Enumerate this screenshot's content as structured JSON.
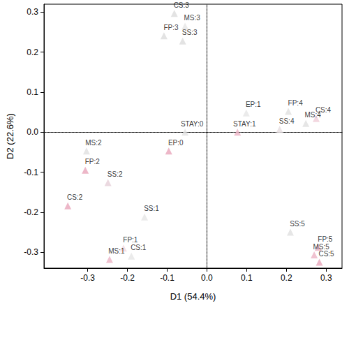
{
  "chart_data": {
    "type": "scatter",
    "x_label": "D1 (54.4%)",
    "y_label": "D2 (22.6%)",
    "marker": "triangle",
    "data_labels": true,
    "grid": false,
    "labels": [
      "CS:3",
      "MS:3",
      "FP:3",
      "SS:3",
      "EP:1",
      "FP:4",
      "CS:4",
      "MS:4",
      "SS:4",
      "STAY:1",
      "STAY:0",
      "EP:0",
      "MS:2",
      "FP:2",
      "SS:2",
      "CS:2",
      "SS:1",
      "FP:1",
      "CS:1",
      "MS:1",
      "SS:5",
      "FP:5",
      "MS:5",
      "CS:5"
    ],
    "x": [
      -0.082,
      -0.055,
      -0.108,
      -0.061,
      0.099,
      0.205,
      0.275,
      0.249,
      0.183,
      0.077,
      -0.055,
      -0.096,
      -0.303,
      -0.306,
      -0.249,
      -0.35,
      -0.157,
      -0.21,
      -0.19,
      -0.245,
      0.21,
      0.28,
      0.27,
      0.283
    ],
    "y": [
      0.297,
      0.265,
      0.241,
      0.228,
      0.048,
      0.052,
      0.034,
      0.022,
      0.007,
      0.0,
      0.0,
      -0.047,
      -0.047,
      -0.095,
      -0.126,
      -0.184,
      -0.212,
      -0.29,
      -0.31,
      -0.318,
      -0.25,
      -0.288,
      -0.307,
      -0.325
    ],
    "colors": [
      "#dcdcdc",
      "#e6e6e6",
      "#dcdcdc",
      "#dcdcdc",
      "#e6e6e6",
      "#e0e0e0",
      "#f0cdd8",
      "#e0e0e0",
      "#e6dde0",
      "#ecb3c4",
      "#e2e2e2",
      "#e8a5ba",
      "#e0e0e0",
      "#e8a5ba",
      "#e6d0d8",
      "#e8a5ba",
      "#e6e6e6",
      "#f0d8e0",
      "#e6e6e6",
      "#ecb3c4",
      "#e0e0e0",
      "#ecb3c4",
      "#ecb3c4",
      "#e8a5ba"
    ],
    "xlim": [
      -0.41,
      0.34
    ],
    "xticks": [
      -0.3,
      -0.2,
      -0.1,
      {
        "value": 0,
        "label": "0.0"
      },
      0.1,
      0.2,
      0.3
    ],
    "ylim": [
      -0.34,
      0.32
    ],
    "yticks": [
      -0.3,
      -0.2,
      -0.1,
      {
        "value": 0,
        "label": "0.0"
      },
      0.1,
      0.2,
      0.3
    ]
  }
}
